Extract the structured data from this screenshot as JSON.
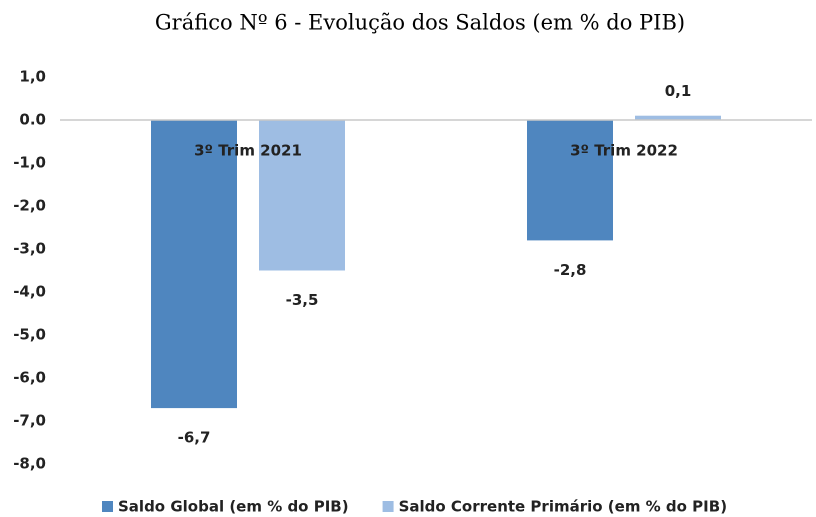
{
  "chart_data": {
    "type": "bar",
    "title": "Gráfico  Nº 6 - Evolução dos Saldos (em % do PIB)",
    "categories": [
      "3º Trim 2021",
      "3º Trim 2022"
    ],
    "series": [
      {
        "name": "Saldo Global (em % do PIB)",
        "color": "#4f86bf",
        "values": [
          -6.7,
          -2.8
        ],
        "value_labels": [
          "-6,7",
          "-2,8"
        ]
      },
      {
        "name": "Saldo Corrente Primário (em % do PIB)",
        "color": "#9ebde3",
        "values": [
          -3.5,
          0.1
        ],
        "value_labels": [
          "-3,5",
          "0,1"
        ]
      }
    ],
    "ylim": [
      -8,
      1
    ],
    "yticks": [
      {
        "value": 1,
        "label": "1,0"
      },
      {
        "value": 0,
        "label": "0.0"
      },
      {
        "value": -1,
        "label": "-1,0"
      },
      {
        "value": -2,
        "label": "-2,0"
      },
      {
        "value": -3,
        "label": "-3,0"
      },
      {
        "value": -4,
        "label": "-4,0"
      },
      {
        "value": -5,
        "label": "-5,0"
      },
      {
        "value": -6,
        "label": "-6,0"
      },
      {
        "value": -7,
        "label": "-7,0"
      },
      {
        "value": -8,
        "label": "-8,0"
      }
    ],
    "grid": false
  }
}
